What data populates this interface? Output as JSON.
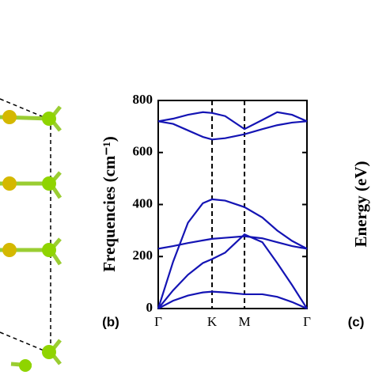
{
  "chart_data": {
    "type": "line",
    "ylabel": "Frequencies (cm⁻¹)",
    "panel_label": "(b)",
    "other_panel_label": "(c)",
    "other_ylabel": "Energy (eV)",
    "x": [
      0,
      0.1,
      0.2,
      0.3,
      0.362,
      0.45,
      0.58,
      0.7,
      0.8,
      0.9,
      1.0
    ],
    "xlim": [
      0,
      1
    ],
    "xticks": [
      {
        "value": 0,
        "label": "Γ"
      },
      {
        "value": 0.362,
        "label": "K"
      },
      {
        "value": 0.58,
        "label": "M"
      },
      {
        "value": 1,
        "label": "Γ"
      }
    ],
    "ylim": [
      0,
      800
    ],
    "yticks": [
      0,
      200,
      400,
      600,
      800
    ],
    "series": [
      {
        "color": "#1414b4",
        "values": [
          0,
          30,
          50,
          62,
          65,
          62,
          55,
          55,
          45,
          25,
          0
        ]
      },
      {
        "color": "#1414b4",
        "values": [
          0,
          70,
          130,
          175,
          190,
          215,
          285,
          255,
          175,
          90,
          0
        ]
      },
      {
        "color": "#1414b4",
        "values": [
          230,
          240,
          252,
          262,
          268,
          272,
          278,
          270,
          255,
          240,
          230
        ]
      },
      {
        "color": "#1414b4",
        "values": [
          0,
          180,
          330,
          405,
          420,
          415,
          390,
          350,
          300,
          260,
          230
        ]
      },
      {
        "color": "#1414b4",
        "values": [
          720,
          710,
          685,
          660,
          650,
          655,
          670,
          690,
          705,
          715,
          720
        ]
      },
      {
        "color": "#1414b4",
        "values": [
          720,
          730,
          745,
          755,
          752,
          740,
          690,
          725,
          755,
          745,
          720
        ]
      }
    ]
  }
}
